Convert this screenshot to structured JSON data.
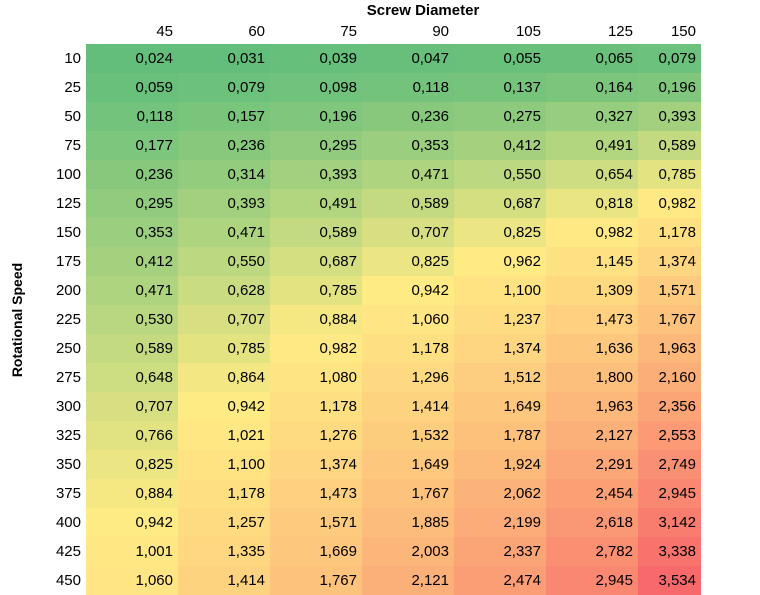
{
  "chart_data": {
    "type": "heatmap",
    "xlabel": "Screw Diameter",
    "ylabel": "Rotational Speed",
    "x": [
      "45",
      "60",
      "75",
      "90",
      "105",
      "125",
      "150"
    ],
    "y": [
      "10",
      "25",
      "50",
      "75",
      "100",
      "125",
      "150",
      "175",
      "200",
      "225",
      "250",
      "275",
      "300",
      "325",
      "350",
      "375",
      "400",
      "425",
      "450"
    ],
    "values": [
      [
        "0,024",
        "0,031",
        "0,039",
        "0,047",
        "0,055",
        "0,065",
        "0,079"
      ],
      [
        "0,059",
        "0,079",
        "0,098",
        "0,118",
        "0,137",
        "0,164",
        "0,196"
      ],
      [
        "0,118",
        "0,157",
        "0,196",
        "0,236",
        "0,275",
        "0,327",
        "0,393"
      ],
      [
        "0,177",
        "0,236",
        "0,295",
        "0,353",
        "0,412",
        "0,491",
        "0,589"
      ],
      [
        "0,236",
        "0,314",
        "0,393",
        "0,471",
        "0,550",
        "0,654",
        "0,785"
      ],
      [
        "0,295",
        "0,393",
        "0,491",
        "0,589",
        "0,687",
        "0,818",
        "0,982"
      ],
      [
        "0,353",
        "0,471",
        "0,589",
        "0,707",
        "0,825",
        "0,982",
        "1,178"
      ],
      [
        "0,412",
        "0,550",
        "0,687",
        "0,825",
        "0,962",
        "1,145",
        "1,374"
      ],
      [
        "0,471",
        "0,628",
        "0,785",
        "0,942",
        "1,100",
        "1,309",
        "1,571"
      ],
      [
        "0,530",
        "0,707",
        "0,884",
        "1,060",
        "1,237",
        "1,473",
        "1,767"
      ],
      [
        "0,589",
        "0,785",
        "0,982",
        "1,178",
        "1,374",
        "1,636",
        "1,963"
      ],
      [
        "0,648",
        "0,864",
        "1,080",
        "1,296",
        "1,512",
        "1,800",
        "2,160"
      ],
      [
        "0,707",
        "0,942",
        "1,178",
        "1,414",
        "1,649",
        "1,963",
        "2,356"
      ],
      [
        "0,766",
        "1,021",
        "1,276",
        "1,532",
        "1,787",
        "2,127",
        "2,553"
      ],
      [
        "0,825",
        "1,100",
        "1,374",
        "1,649",
        "1,924",
        "2,291",
        "2,749"
      ],
      [
        "0,884",
        "1,178",
        "1,473",
        "1,767",
        "2,062",
        "2,454",
        "2,945"
      ],
      [
        "0,942",
        "1,257",
        "1,571",
        "1,885",
        "2,199",
        "2,618",
        "3,142"
      ],
      [
        "1,001",
        "1,335",
        "1,669",
        "2,003",
        "2,337",
        "2,782",
        "3,338"
      ],
      [
        "1,060",
        "1,414",
        "1,767",
        "2,121",
        "2,474",
        "2,945",
        "3,534"
      ]
    ],
    "color_scale": {
      "low": "#63be7b",
      "mid": "#ffeb84",
      "high": "#f8696b"
    },
    "grid": false
  }
}
